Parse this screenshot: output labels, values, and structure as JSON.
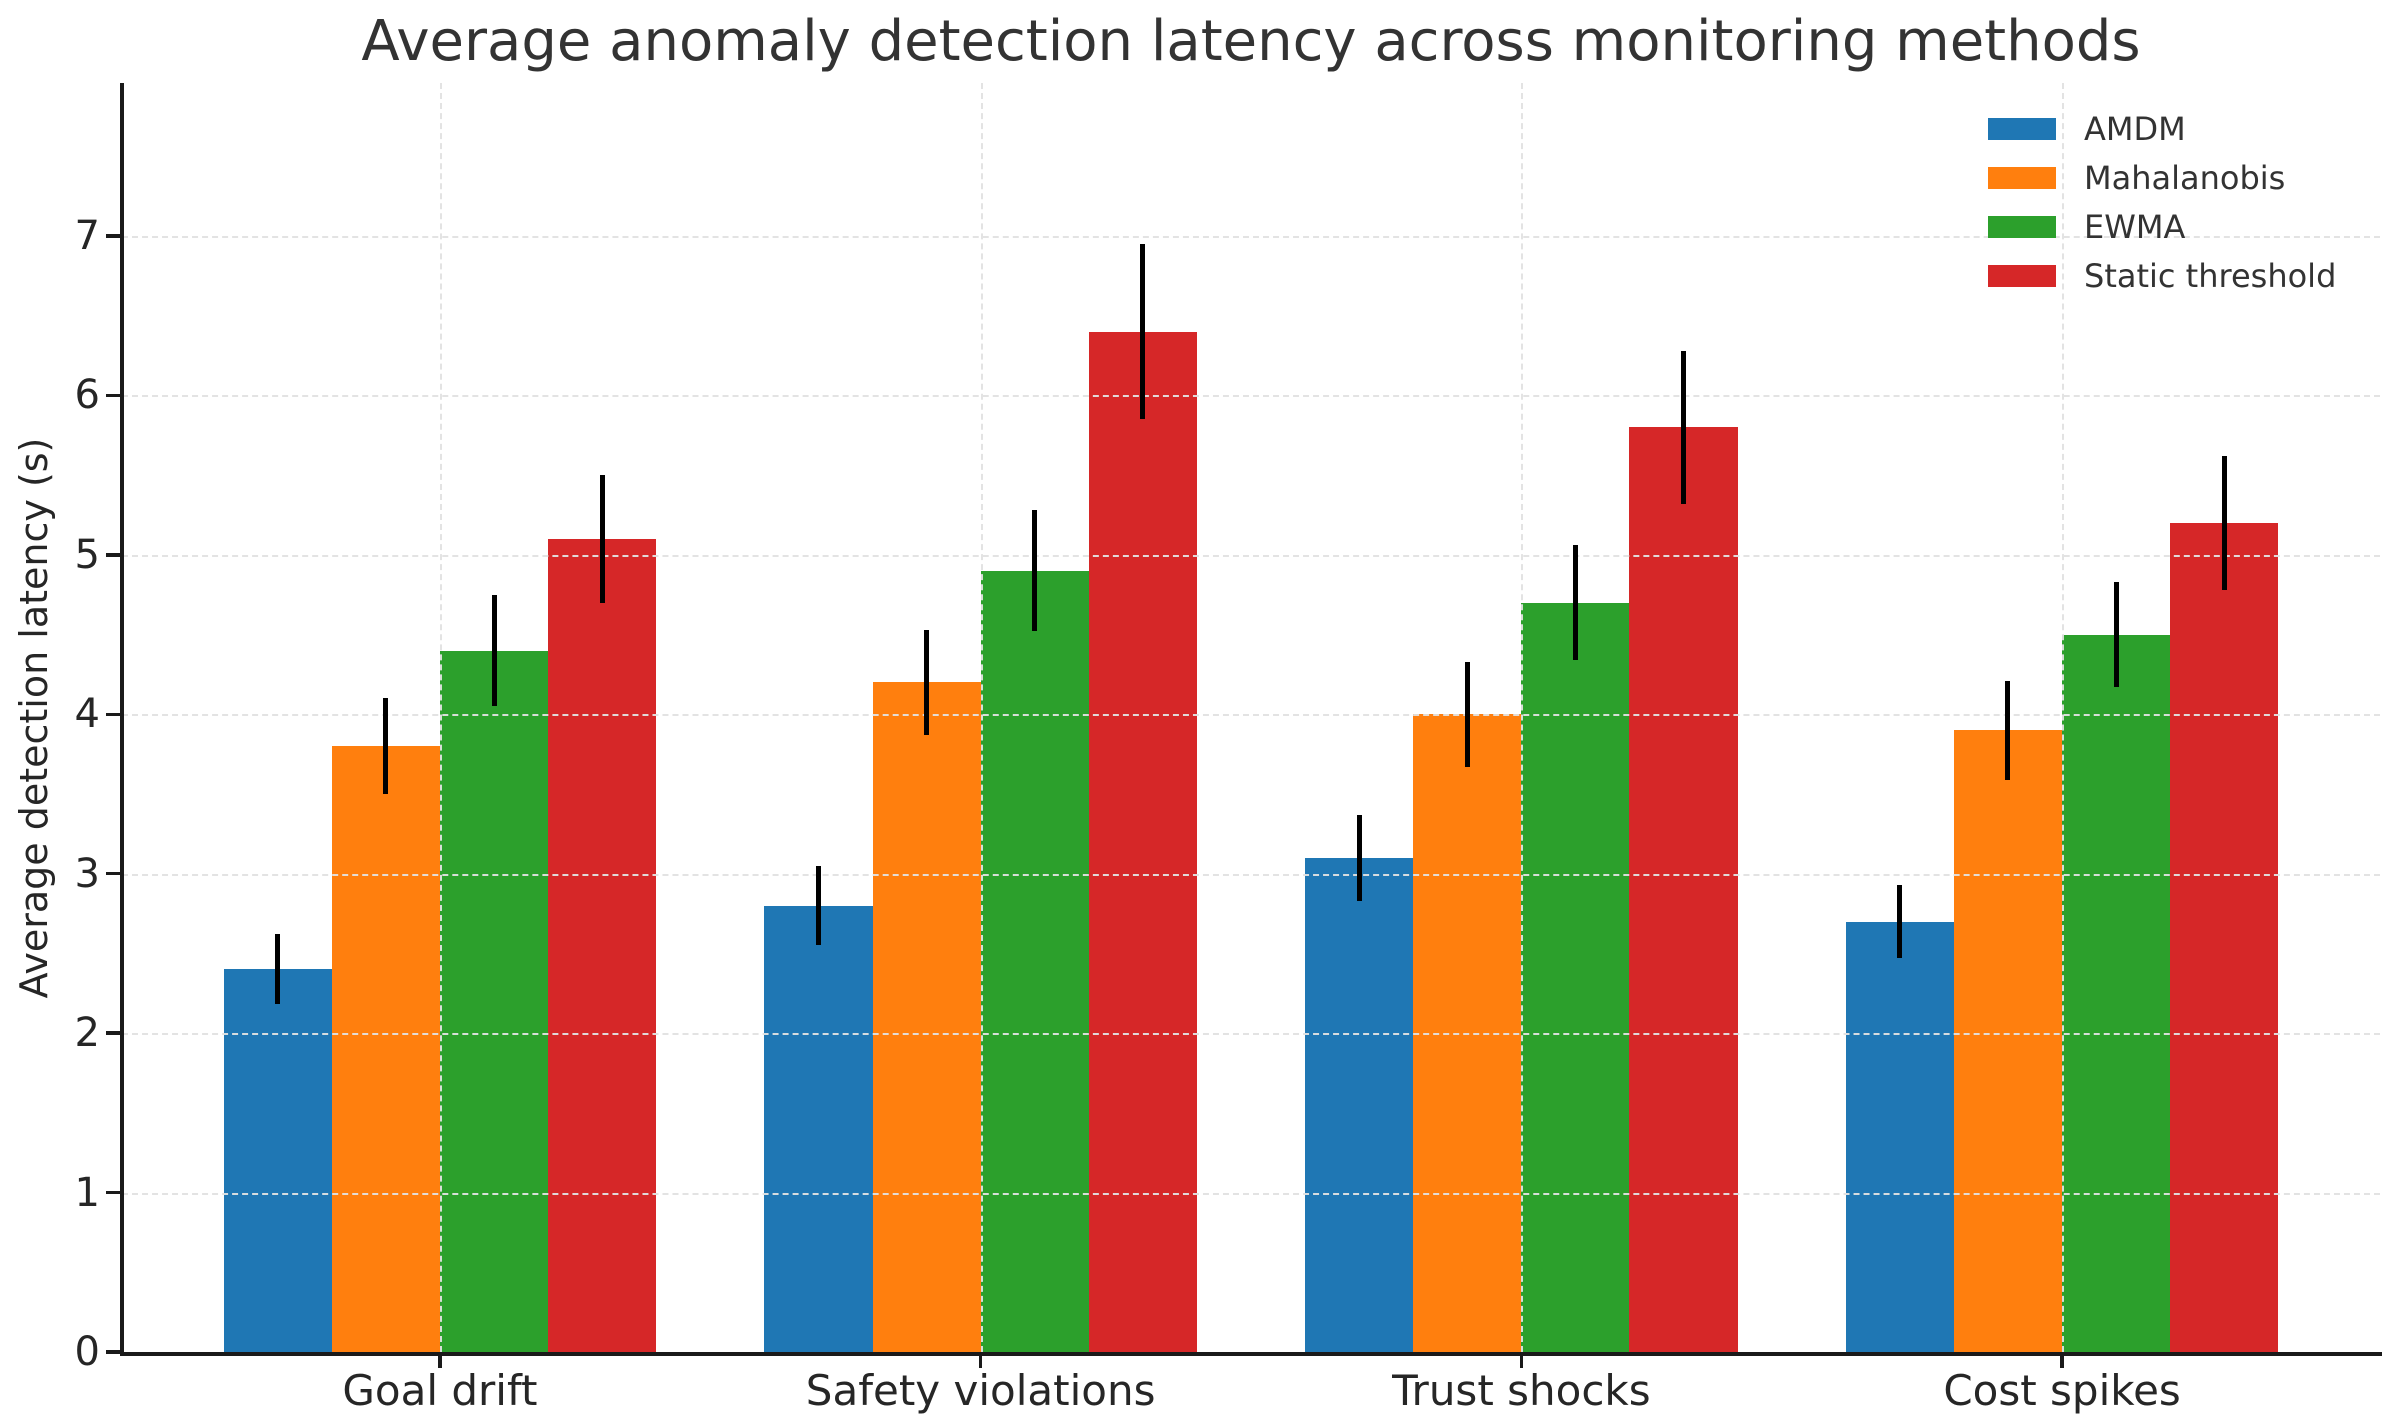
{
  "figure": {
    "title": "Average anomaly detection latency across monitoring methods",
    "ylabel": "Average detection latency (s)"
  },
  "chart_data": {
    "type": "bar",
    "title": "Average anomaly detection latency across monitoring methods",
    "xlabel": "",
    "ylabel": "Average detection latency (s)",
    "categories": [
      "Goal drift",
      "Safety violations",
      "Trust shocks",
      "Cost spikes"
    ],
    "series": [
      {
        "name": "AMDM",
        "color": "#1f77b4",
        "values": [
          2.4,
          2.8,
          3.1,
          2.7
        ],
        "errors": [
          0.22,
          0.25,
          0.27,
          0.23
        ]
      },
      {
        "name": "Mahalanobis",
        "color": "#ff7f0e",
        "values": [
          3.8,
          4.2,
          4.0,
          3.9
        ],
        "errors": [
          0.3,
          0.33,
          0.33,
          0.31
        ]
      },
      {
        "name": "EWMA",
        "color": "#2ca02c",
        "values": [
          4.4,
          4.9,
          4.7,
          4.5
        ],
        "errors": [
          0.35,
          0.38,
          0.36,
          0.33
        ]
      },
      {
        "name": "Static threshold",
        "color": "#d62728",
        "values": [
          5.1,
          6.4,
          5.8,
          5.2
        ],
        "errors": [
          0.4,
          0.55,
          0.48,
          0.42
        ]
      }
    ],
    "yticks": [
      0,
      1,
      2,
      3,
      4,
      5,
      6,
      7
    ],
    "ylim": [
      0,
      7.96
    ],
    "grid": true,
    "grid_style": "dashed",
    "error_bars": true,
    "legend_position": "upper right",
    "background_color": "#ffffff",
    "bar_group_width": 0.8
  }
}
